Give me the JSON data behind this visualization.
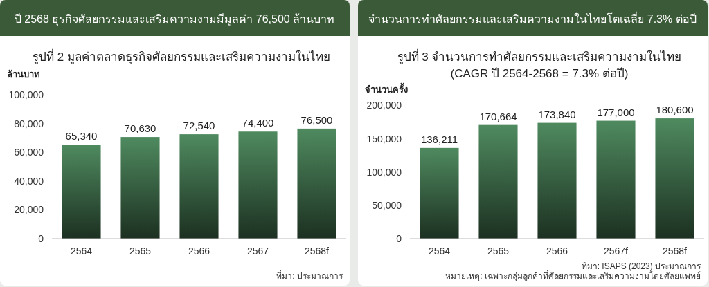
{
  "chart_data": [
    {
      "type": "bar",
      "title": "ปี 2568 ธุรกิจศัลยกรรมและเสริมความงามมีมูลค่า 76,500 ล้านบาท",
      "subtitle": "รูปที่ 2  มูลค่าตลาดธุรกิจศัลยกรรมและเสริมความงามในไทย",
      "ylabel": "ล้านบาท",
      "categories": [
        "2564",
        "2565",
        "2566",
        "2567",
        "2568f"
      ],
      "values": [
        65340,
        70630,
        72540,
        74400,
        76500
      ],
      "color": "#4f8a5f",
      "ylim": [
        0,
        100000
      ],
      "yticks": [
        {
          "value": 0,
          "label": "0"
        },
        {
          "value": 20000,
          "label": "20,000"
        },
        {
          "value": 40000,
          "label": "40,000"
        },
        {
          "value": 60000,
          "label": "60,000"
        },
        {
          "value": 80000,
          "label": "80,000"
        },
        {
          "value": 100000,
          "label": "100,000"
        }
      ],
      "value_labels": [
        "65,340",
        "70,630",
        "72,540",
        "74,400",
        "76,500"
      ],
      "grid": false,
      "annotations": [
        "ที่มา: ประมาณการ"
      ]
    },
    {
      "type": "bar",
      "title": "จำนวนการทำศัลยกรรมและเสริมความงามในไทยโตเฉลี่ย 7.3% ต่อปี",
      "subtitle": "รูปที่ 3 จำนวนการทำศัลยกรรมและเสริมความงามในไทย",
      "ylabel": "จำนวนครั้ง",
      "categories": [
        "2564",
        "2565",
        "2566",
        "2567f",
        "2568f"
      ],
      "values": [
        136211,
        170664,
        173840,
        177000,
        180600
      ],
      "color": "#4f8a5f",
      "ylim": [
        0,
        200000
      ],
      "yticks": [
        {
          "value": 0,
          "label": "0"
        },
        {
          "value": 50000,
          "label": "50,000"
        },
        {
          "value": 100000,
          "label": "100,000"
        },
        {
          "value": 150000,
          "label": "150,000"
        },
        {
          "value": 200000,
          "label": "200,000"
        }
      ],
      "value_labels": [
        "136,211",
        "170,664",
        "173,840",
        "177,000",
        "180,600"
      ],
      "grid": false,
      "annotations": [
        "(CAGR ปี 2564-2568 = 7.3% ต่อปี)",
        "ที่มา: ISAPS (2023) ประมาณการ",
        "หมายเหตุ: เฉพาะกลุ่มลูกค้าที่ศัลยกรรมและเสริมความงามโดยศัลยแพทย์"
      ]
    }
  ]
}
